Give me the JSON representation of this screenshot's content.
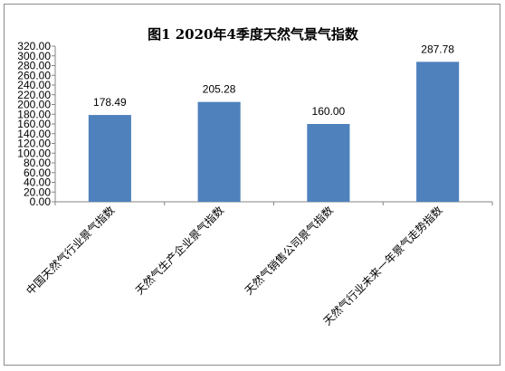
{
  "chart_data": {
    "type": "bar",
    "title": "图1   2020年4季度天然气景气指数",
    "categories": [
      "中国天然气行业景气指数",
      "天然气生产企业景气指数",
      "天然气销售公司景气指数",
      "天然气行业未来一年景气走势指数"
    ],
    "values": [
      178.49,
      205.28,
      160.0,
      287.78
    ],
    "data_labels": [
      "178.49",
      "205.28",
      "160.00",
      "287.78"
    ],
    "ylim": [
      0,
      320
    ],
    "ytick_step": 20,
    "grid": false,
    "legend": "none",
    "bar_color": "#4F81BD",
    "xlabel": "",
    "ylabel": ""
  }
}
